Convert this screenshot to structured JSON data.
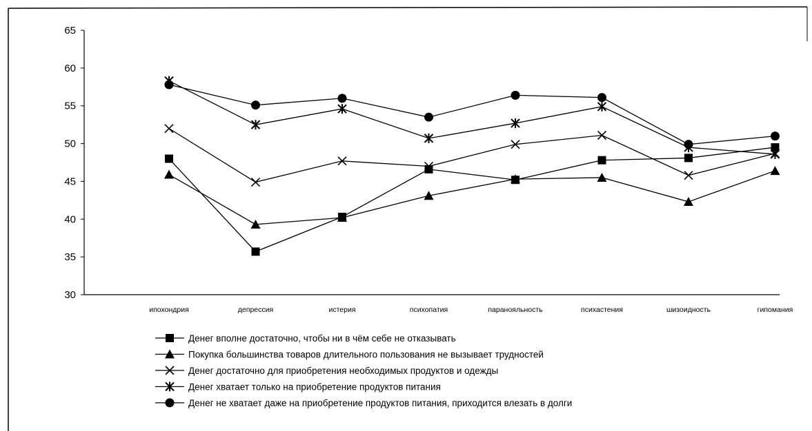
{
  "chart_data": {
    "type": "line",
    "categories": [
      "ипохондрия",
      "депрессия",
      "истерия",
      "психопатия",
      "паранояльность",
      "психастения",
      "шизоидность",
      "гипомания"
    ],
    "ylim": [
      30,
      65
    ],
    "yticks": [
      30,
      35,
      40,
      45,
      50,
      55,
      60,
      65
    ],
    "grid": false,
    "legend_position": "bottom",
    "series": [
      {
        "name": "Денег вполне достаточно, чтобы ни в чём себе не отказывать",
        "marker": "square",
        "values": [
          48.0,
          35.7,
          40.3,
          46.6,
          45.2,
          47.8,
          48.1,
          49.5
        ]
      },
      {
        "name": "Покупка большинства товаров длительного пользования не вызывает трудностей",
        "marker": "triangle",
        "values": [
          45.9,
          39.3,
          40.2,
          43.1,
          45.3,
          45.5,
          42.3,
          46.4
        ]
      },
      {
        "name": "Денег достаточно для приобретения необходимых продуктов и одежды",
        "marker": "x",
        "values": [
          52.0,
          44.9,
          47.7,
          47.0,
          49.9,
          51.1,
          45.8,
          48.7
        ]
      },
      {
        "name": "Денег хватает только на приобретение продуктов питания",
        "marker": "star",
        "values": [
          58.3,
          52.5,
          54.6,
          50.7,
          52.7,
          54.9,
          49.5,
          48.6
        ]
      },
      {
        "name": "Денег не хватает даже на приобретение продуктов питания, приходится влезать в долги",
        "marker": "circle",
        "values": [
          57.8,
          55.1,
          56.0,
          53.5,
          56.4,
          56.1,
          49.9,
          51.0
        ]
      }
    ]
  }
}
